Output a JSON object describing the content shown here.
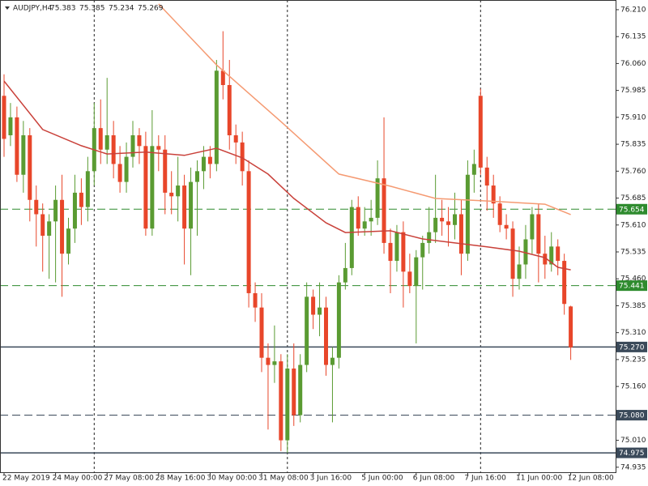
{
  "chart_data": {
    "type": "candlestick",
    "header": {
      "symbol": "AUDJPY,H4",
      "values": [
        75.383,
        75.385,
        75.234,
        75.269
      ]
    },
    "categories": [
      "22 May 2019",
      null,
      null,
      null,
      null,
      null,
      null,
      null,
      "24 May 00:00",
      null,
      null,
      null,
      null,
      null,
      null,
      null,
      "27 May 08:00",
      null,
      null,
      null,
      null,
      null,
      null,
      null,
      "28 May 16:00",
      null,
      null,
      null,
      null,
      null,
      null,
      null,
      "30 May 00:00",
      null,
      null,
      null,
      null,
      null,
      null,
      null,
      "31 May 08:00",
      null,
      null,
      null,
      null,
      null,
      null,
      null,
      "3 Jun 16:00",
      null,
      null,
      null,
      null,
      null,
      null,
      null,
      "5 Jun 00:00",
      null,
      null,
      null,
      null,
      null,
      null,
      null,
      "6 Jun 08:00",
      null,
      null,
      null,
      null,
      null,
      null,
      null,
      "7 Jun 16:00",
      null,
      null,
      null,
      null,
      null,
      null,
      null,
      "11 Jun 00:00",
      null,
      null,
      null,
      null,
      null,
      null,
      null,
      "12 Jun 08:00"
    ],
    "open": [
      75.97,
      75.86,
      75.91,
      75.75,
      75.86,
      75.68,
      75.64,
      75.58,
      75.62,
      75.68,
      75.53,
      75.6,
      75.7,
      75.66,
      75.76,
      75.88,
      75.82,
      75.86,
      75.78,
      75.73,
      75.8,
      75.86,
      75.83,
      75.6,
      75.83,
      75.82,
      75.7,
      75.69,
      75.72,
      75.6,
      75.73,
      75.76,
      75.8,
      75.78,
      76.04,
      76.0,
      75.86,
      75.84,
      75.76,
      75.42,
      75.38,
      75.24,
      75.22,
      75.23,
      75.01,
      75.21,
      75.08,
      75.22,
      75.41,
      75.36,
      75.38,
      75.22,
      75.24,
      75.45,
      75.49,
      75.66,
      75.6,
      75.62,
      75.63,
      75.74,
      75.56,
      75.51,
      75.59,
      75.48,
      75.44,
      75.52,
      75.56,
      75.59,
      75.63,
      75.62,
      75.61,
      75.64,
      75.53,
      75.75,
      75.97,
      75.77,
      75.72,
      75.67,
      75.61,
      75.6,
      75.46,
      75.5,
      75.57,
      75.64,
      75.53,
      75.5,
      75.55,
      75.51,
      75.383
    ],
    "high": [
      76.03,
      75.95,
      75.94,
      75.9,
      75.88,
      75.72,
      75.67,
      75.64,
      75.72,
      75.75,
      75.63,
      75.75,
      75.74,
      75.8,
      75.95,
      75.96,
      76.02,
      75.9,
      75.83,
      75.84,
      75.9,
      75.88,
      75.87,
      75.93,
      75.86,
      75.86,
      75.76,
      75.8,
      75.75,
      75.77,
      75.79,
      75.83,
      75.83,
      76.07,
      76.15,
      76.07,
      75.89,
      75.87,
      75.79,
      75.45,
      75.42,
      75.28,
      75.33,
      75.25,
      75.25,
      75.28,
      75.25,
      75.45,
      75.43,
      75.45,
      75.41,
      75.27,
      75.47,
      75.56,
      75.68,
      75.69,
      75.66,
      75.68,
      75.79,
      75.91,
      75.6,
      75.61,
      75.62,
      75.53,
      75.54,
      75.58,
      75.66,
      75.75,
      75.68,
      75.66,
      75.7,
      75.68,
      75.79,
      75.82,
      75.99,
      75.8,
      75.75,
      75.69,
      75.64,
      75.62,
      75.55,
      75.61,
      75.66,
      75.67,
      75.58,
      75.59,
      75.57,
      75.53,
      75.385
    ],
    "low": [
      75.8,
      75.83,
      75.73,
      75.7,
      75.62,
      75.55,
      75.48,
      75.46,
      75.45,
      75.41,
      75.5,
      75.56,
      75.61,
      75.62,
      75.72,
      75.78,
      75.78,
      75.74,
      75.7,
      75.7,
      75.77,
      75.78,
      75.58,
      75.58,
      75.76,
      75.64,
      75.64,
      75.62,
      75.5,
      75.47,
      75.58,
      75.71,
      75.74,
      75.76,
      75.96,
      75.82,
      75.78,
      75.72,
      75.38,
      75.34,
      75.2,
      75.04,
      75.17,
      74.98,
      74.975,
      75.05,
      75.06,
      75.2,
      75.32,
      75.3,
      75.19,
      75.06,
      75.21,
      75.43,
      75.47,
      75.58,
      75.58,
      75.58,
      75.61,
      75.53,
      75.42,
      75.48,
      75.38,
      75.42,
      75.28,
      75.43,
      75.53,
      75.56,
      75.58,
      75.55,
      75.57,
      75.47,
      75.51,
      75.7,
      75.75,
      75.65,
      75.63,
      75.59,
      75.57,
      75.41,
      75.43,
      75.46,
      75.53,
      75.45,
      75.46,
      75.48,
      75.47,
      75.36,
      75.234
    ],
    "close": [
      75.85,
      75.91,
      75.75,
      75.86,
      75.68,
      75.64,
      75.58,
      75.62,
      75.68,
      75.53,
      75.6,
      75.7,
      75.66,
      75.76,
      75.88,
      75.82,
      75.86,
      75.78,
      75.73,
      75.8,
      75.86,
      75.83,
      75.6,
      75.83,
      75.82,
      75.7,
      75.69,
      75.72,
      75.6,
      75.73,
      75.76,
      75.8,
      75.78,
      76.04,
      76.0,
      75.86,
      75.84,
      75.76,
      75.42,
      75.38,
      75.24,
      75.22,
      75.23,
      75.01,
      75.21,
      75.08,
      75.22,
      75.41,
      75.36,
      75.38,
      75.22,
      75.24,
      75.45,
      75.49,
      75.66,
      75.6,
      75.62,
      75.63,
      75.74,
      75.56,
      75.51,
      75.59,
      75.48,
      75.44,
      75.52,
      75.56,
      75.59,
      75.63,
      75.62,
      75.61,
      75.64,
      75.53,
      75.75,
      75.78,
      75.77,
      75.72,
      75.67,
      75.61,
      75.6,
      75.46,
      75.5,
      75.57,
      75.64,
      75.53,
      75.5,
      75.55,
      75.51,
      75.39,
      75.269
    ],
    "up_color": "#5a9b32",
    "down_color": "#e8462a",
    "series": [
      {
        "color": "#c9413a",
        "x": [
          0,
          6,
          12,
          16,
          22,
          28,
          33,
          37,
          41,
          45,
          50,
          53,
          60,
          65,
          70,
          75,
          80,
          84,
          86,
          88
        ],
        "values": [
          76.011,
          75.876,
          75.831,
          75.808,
          75.813,
          75.804,
          75.824,
          75.797,
          75.752,
          75.684,
          75.616,
          75.589,
          75.594,
          75.571,
          75.56,
          75.549,
          75.537,
          75.519,
          75.492,
          75.485
        ]
      },
      {
        "color": "#f59a72",
        "x": [
          24,
          33,
          43,
          52,
          60,
          67,
          75,
          84,
          88
        ],
        "values": [
          76.226,
          76.056,
          75.898,
          75.752,
          75.718,
          75.684,
          75.677,
          75.668,
          75.639
        ]
      }
    ],
    "levels": [
      {
        "value": 75.654,
        "color": "#2e8b2e",
        "dashed": true
      },
      {
        "value": 75.441,
        "color": "#2e8b2e",
        "dashed": true
      },
      {
        "value": 75.27,
        "label": "75.270",
        "color": "#3b4a5a",
        "dashed": false
      },
      {
        "value": 75.08,
        "label": "75.080",
        "color": "#3b4a5a",
        "dashed": true
      },
      {
        "value": 74.975,
        "color": "#3b4a5a",
        "dashed": false
      }
    ],
    "ylim": [
      74.921,
      76.237
    ],
    "yticks": [
      {
        "value": 76.21,
        "label": "76.210"
      },
      76.135,
      {
        "value": 76.06,
        "label": "76.060"
      },
      75.985,
      {
        "value": 75.91,
        "label": "75.910"
      },
      75.835,
      {
        "value": 75.76,
        "label": "75.760"
      },
      75.685,
      {
        "value": 75.61,
        "label": "75.610"
      },
      75.535,
      {
        "value": 75.46,
        "label": "75.460"
      },
      75.385,
      {
        "value": 75.31,
        "label": "75.310"
      },
      75.235,
      {
        "value": 75.16,
        "label": "75.160"
      },
      75.085,
      {
        "value": 75.01,
        "label": "75.010"
      },
      74.935
    ]
  }
}
